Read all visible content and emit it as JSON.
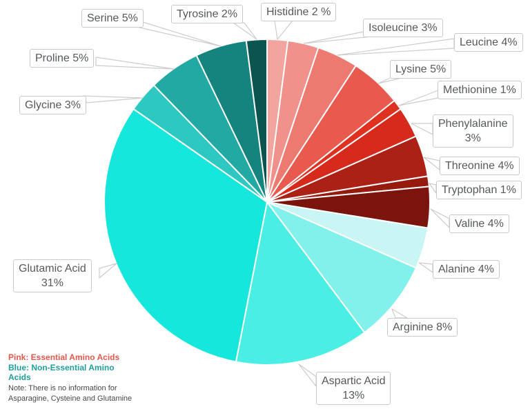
{
  "chart_data": {
    "type": "pie",
    "title": "",
    "unit": "%",
    "direction": "clockwise",
    "start_angle": "12-o-clock",
    "slices": [
      {
        "name": "Histidine",
        "value": 2,
        "label": "Histidine 2 %",
        "color": "#F2A49E",
        "group": "essential"
      },
      {
        "name": "Isoleucine",
        "value": 3,
        "label": "Isoleucine 3%",
        "color": "#F0928B",
        "group": "essential"
      },
      {
        "name": "Leucine",
        "value": 4,
        "label": "Leucine 4%",
        "color": "#ED7A70",
        "group": "essential"
      },
      {
        "name": "Lysine",
        "value": 5,
        "label": "Lysine 5%",
        "color": "#E85A4D",
        "group": "essential"
      },
      {
        "name": "Methionine",
        "value": 1,
        "label": "Methionine 1%",
        "color": "#E0301F",
        "group": "essential"
      },
      {
        "name": "Phenylalanine",
        "value": 3,
        "label": "Phenylalanine\n3%",
        "color": "#D62A1C",
        "group": "essential"
      },
      {
        "name": "Threonine",
        "value": 4,
        "label": "Threonine 4%",
        "color": "#AC2116",
        "group": "essential"
      },
      {
        "name": "Tryptophan",
        "value": 1,
        "label": "Tryptophan 1%",
        "color": "#971A0F",
        "group": "essential"
      },
      {
        "name": "Valine",
        "value": 4,
        "label": "Valine 4%",
        "color": "#7A140C",
        "group": "essential"
      },
      {
        "name": "Alanine",
        "value": 4,
        "label": "Alanine 4%",
        "color": "#C9F6F4",
        "group": "non-essential"
      },
      {
        "name": "Arginine",
        "value": 8,
        "label": "Arginine 8%",
        "color": "#82F1EB",
        "group": "non-essential"
      },
      {
        "name": "Aspartic Acid",
        "value": 13,
        "label": "Aspartic Acid\n13%",
        "color": "#4AEEE5",
        "group": "non-essential"
      },
      {
        "name": "Glutamic Acid",
        "value": 31,
        "label": "Glutamic Acid\n31%",
        "color": "#16E7DC",
        "group": "non-essential"
      },
      {
        "name": "Glycine",
        "value": 3,
        "label": "Glycine 3%",
        "color": "#2DC8C1",
        "group": "non-essential"
      },
      {
        "name": "Proline",
        "value": 5,
        "label": "Proline 5%",
        "color": "#23A9A3",
        "group": "non-essential"
      },
      {
        "name": "Serine",
        "value": 5,
        "label": "Serine 5%",
        "color": "#15837E",
        "group": "non-essential"
      },
      {
        "name": "Tyrosine",
        "value": 2,
        "label": "Tyrosine 2%",
        "color": "#0C5450",
        "group": "non-essential"
      }
    ],
    "legend_position": "bottom-left",
    "grid": false
  },
  "legend": {
    "essential": "Pink: Essential Amino Acids",
    "non_essential": "Blue: Non-Essential Amino\nAcids",
    "note": "Note: There is no information for\nAsparagine, Cysteine and Glutamine",
    "essential_color": "#E4584C",
    "non_essential_color": "#1FA09B",
    "note_color": "#474747"
  }
}
